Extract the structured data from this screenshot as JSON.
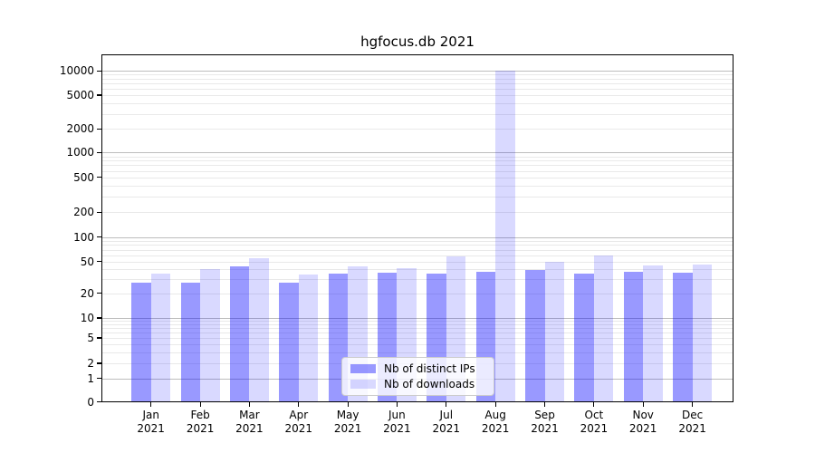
{
  "chart_data": {
    "type": "bar",
    "title": "hgfocus.db 2021",
    "x_tick_months": [
      "Jan",
      "Feb",
      "Mar",
      "Apr",
      "May",
      "Jun",
      "Jul",
      "Aug",
      "Sep",
      "Oct",
      "Nov",
      "Dec"
    ],
    "x_tick_year": "2021",
    "series": [
      {
        "name": "Nb of distinct IPs",
        "color": "rgba(0,0,255,0.4)",
        "values": [
          27,
          27,
          43,
          27,
          35,
          36,
          35,
          37,
          39,
          35,
          37,
          36
        ]
      },
      {
        "name": "Nb of downloads",
        "color": "rgba(0,0,255,0.15)",
        "values": [
          35,
          40,
          55,
          34,
          43,
          41,
          57,
          10000,
          49,
          59,
          44,
          46
        ]
      }
    ],
    "y_ticks": [
      0,
      1,
      2,
      5,
      10,
      20,
      50,
      100,
      200,
      500,
      1000,
      2000,
      5000,
      10000
    ],
    "y_scale": "symlog",
    "ylim": [
      0,
      15000
    ],
    "grid": "both",
    "legend_position": "lower center",
    "colors": {
      "major_grid": "#bdbdbd",
      "minor_grid": "#e9e9e9",
      "axis": "#000000",
      "legend_border": "#cccccc",
      "legend_background": "rgba(255,255,255,0.8)",
      "background": "#ffffff"
    }
  }
}
